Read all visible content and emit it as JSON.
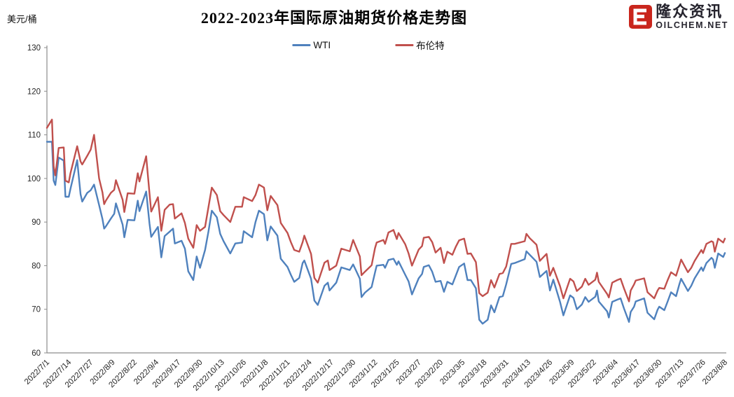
{
  "logo": {
    "icon_glyph": "e",
    "icon_color": "#c9261d",
    "name_zh": "隆众资讯",
    "domain": "OILCHEM.NET",
    "text_color": "#26242e"
  },
  "chart_data": {
    "type": "line",
    "title": "2022-2023年国际原油期货价格走势图",
    "ylabel": "美元/桶",
    "xlabel": "",
    "ylim": [
      60,
      130
    ],
    "grid": false,
    "legend_position": "top-center",
    "y_ticks": [
      60,
      70,
      80,
      90,
      100,
      110,
      120,
      130
    ],
    "x_unit": "day offset from 2022/7/1",
    "x_tick_day_offsets": [
      0,
      13,
      26,
      39,
      52,
      65,
      78,
      91,
      104,
      117,
      130,
      143,
      156,
      169,
      182,
      195,
      208,
      221,
      234,
      247,
      260,
      273,
      286,
      299,
      312,
      325,
      338,
      351,
      364,
      377,
      390,
      403
    ],
    "x_tick_labels": [
      "2022/7/1",
      "2022/7/14",
      "2022/7/27",
      "2022/8/9",
      "2022/8/22",
      "2022/9/4",
      "2022/9/17",
      "2022/9/30",
      "2022/10/13",
      "2022/10/26",
      "2022/11/8",
      "2022/11/21",
      "2022/12/4",
      "2022/12/17",
      "2022/12/30",
      "2023/1/12",
      "2023/1/25",
      "2023/2/7",
      "2023/2/20",
      "2023/3/5",
      "2023/3/18",
      "2023/3/31",
      "2023/4/13",
      "2023/4/26",
      "2023/5/9",
      "2023/5/22",
      "2023/6/4",
      "2023/6/17",
      "2023/6/30",
      "2023/7/13",
      "2023/7/26",
      "2023/8/8"
    ],
    "series": [
      {
        "name": "WTI",
        "color": "#4F81BD"
      },
      {
        "name": "布伦特",
        "color": "#C0504D"
      }
    ],
    "points_format": [
      "day_offset",
      "WTI",
      "布伦特"
    ],
    "points": [
      [
        0,
        108.4,
        111.6
      ],
      [
        3,
        108.4,
        113.5
      ],
      [
        4,
        99.5,
        102.8
      ],
      [
        5,
        98.5,
        100.7
      ],
      [
        7,
        104.8,
        107.0
      ],
      [
        10,
        104.1,
        107.1
      ],
      [
        11,
        95.8,
        99.5
      ],
      [
        13,
        95.8,
        99.1
      ],
      [
        14,
        97.6,
        101.2
      ],
      [
        18,
        104.2,
        107.4
      ],
      [
        20,
        96.4,
        103.9
      ],
      [
        21,
        94.7,
        103.2
      ],
      [
        24,
        96.7,
        105.2
      ],
      [
        26,
        97.3,
        106.6
      ],
      [
        28,
        98.6,
        110.0
      ],
      [
        31,
        93.9,
        100.0
      ],
      [
        33,
        90.7,
        96.8
      ],
      [
        34,
        88.5,
        94.1
      ],
      [
        35,
        89.0,
        94.9
      ],
      [
        38,
        90.8,
        96.7
      ],
      [
        40,
        91.9,
        97.4
      ],
      [
        41,
        94.3,
        99.6
      ],
      [
        45,
        89.4,
        95.1
      ],
      [
        46,
        86.5,
        92.3
      ],
      [
        48,
        90.5,
        96.6
      ],
      [
        52,
        90.4,
        96.5
      ],
      [
        54,
        94.9,
        101.2
      ],
      [
        55,
        92.5,
        99.3
      ],
      [
        59,
        97.0,
        105.1
      ],
      [
        61,
        89.6,
        96.5
      ],
      [
        62,
        86.6,
        92.4
      ],
      [
        66,
        88.9,
        95.7
      ],
      [
        68,
        81.9,
        88.0
      ],
      [
        70,
        86.8,
        92.8
      ],
      [
        73,
        87.8,
        94.0
      ],
      [
        75,
        88.5,
        94.1
      ],
      [
        76,
        85.1,
        90.8
      ],
      [
        80,
        85.7,
        92.0
      ],
      [
        82,
        83.9,
        89.8
      ],
      [
        84,
        78.7,
        86.2
      ],
      [
        87,
        76.7,
        84.1
      ],
      [
        89,
        82.1,
        89.3
      ],
      [
        91,
        79.5,
        88.0
      ],
      [
        94,
        83.6,
        88.9
      ],
      [
        96,
        87.8,
        93.4
      ],
      [
        98,
        92.6,
        97.9
      ],
      [
        101,
        91.1,
        96.2
      ],
      [
        103,
        87.3,
        92.5
      ],
      [
        105,
        85.6,
        91.6
      ],
      [
        109,
        82.8,
        90.0
      ],
      [
        112,
        85.1,
        93.5
      ],
      [
        116,
        85.3,
        93.5
      ],
      [
        117,
        87.9,
        95.7
      ],
      [
        122,
        86.5,
        94.8
      ],
      [
        124,
        90.0,
        96.2
      ],
      [
        126,
        92.6,
        98.6
      ],
      [
        129,
        91.8,
        97.9
      ],
      [
        131,
        85.8,
        92.7
      ],
      [
        133,
        89.0,
        96.0
      ],
      [
        137,
        86.9,
        93.9
      ],
      [
        139,
        81.6,
        89.8
      ],
      [
        143,
        79.7,
        87.5
      ],
      [
        145,
        77.9,
        85.4
      ],
      [
        147,
        76.3,
        83.6
      ],
      [
        150,
        77.2,
        83.2
      ],
      [
        152,
        80.6,
        85.4
      ],
      [
        153,
        81.2,
        86.9
      ],
      [
        157,
        77.0,
        82.7
      ],
      [
        159,
        72.0,
        77.2
      ],
      [
        161,
        71.0,
        76.1
      ],
      [
        165,
        75.4,
        80.7
      ],
      [
        167,
        76.1,
        81.2
      ],
      [
        168,
        74.3,
        79.0
      ],
      [
        172,
        76.1,
        80.0
      ],
      [
        175,
        79.6,
        83.9
      ],
      [
        180,
        79.0,
        83.3
      ],
      [
        182,
        80.3,
        85.9
      ],
      [
        186,
        77.0,
        82.1
      ],
      [
        187,
        72.8,
        77.8
      ],
      [
        189,
        73.8,
        78.6
      ],
      [
        193,
        75.1,
        80.1
      ],
      [
        195,
        78.4,
        84.0
      ],
      [
        196,
        80.0,
        85.3
      ],
      [
        200,
        80.2,
        85.9
      ],
      [
        201,
        79.5,
        85.0
      ],
      [
        203,
        81.3,
        87.6
      ],
      [
        206,
        81.6,
        88.2
      ],
      [
        208,
        80.2,
        86.1
      ],
      [
        209,
        81.0,
        87.5
      ],
      [
        213,
        77.9,
        84.9
      ],
      [
        215,
        76.4,
        82.8
      ],
      [
        217,
        73.4,
        80.0
      ],
      [
        221,
        77.1,
        83.7
      ],
      [
        223,
        78.1,
        84.5
      ],
      [
        224,
        79.7,
        86.4
      ],
      [
        227,
        80.1,
        86.6
      ],
      [
        229,
        78.6,
        85.4
      ],
      [
        231,
        76.3,
        83.0
      ],
      [
        234,
        76.5,
        84.1
      ],
      [
        236,
        74.0,
        80.6
      ],
      [
        238,
        76.3,
        83.2
      ],
      [
        241,
        75.7,
        82.5
      ],
      [
        243,
        77.7,
        84.3
      ],
      [
        245,
        79.7,
        85.8
      ],
      [
        248,
        80.5,
        86.2
      ],
      [
        250,
        76.7,
        82.7
      ],
      [
        252,
        76.7,
        82.8
      ],
      [
        255,
        74.8,
        80.8
      ],
      [
        257,
        67.6,
        73.7
      ],
      [
        259,
        66.7,
        73.0
      ],
      [
        262,
        67.6,
        73.8
      ],
      [
        264,
        70.9,
        76.7
      ],
      [
        266,
        69.3,
        75.0
      ],
      [
        269,
        72.8,
        78.1
      ],
      [
        271,
        73.0,
        78.3
      ],
      [
        273,
        75.7,
        79.8
      ],
      [
        276,
        80.4,
        85.0
      ],
      [
        278,
        80.6,
        85.0
      ],
      [
        284,
        81.5,
        85.6
      ],
      [
        285,
        83.3,
        87.3
      ],
      [
        287,
        82.5,
        86.3
      ],
      [
        291,
        80.9,
        84.8
      ],
      [
        293,
        77.4,
        81.1
      ],
      [
        297,
        78.8,
        82.7
      ],
      [
        299,
        74.3,
        77.7
      ],
      [
        301,
        76.8,
        79.5
      ],
      [
        305,
        71.7,
        75.3
      ],
      [
        307,
        68.6,
        72.5
      ],
      [
        311,
        73.2,
        77.0
      ],
      [
        313,
        72.6,
        76.4
      ],
      [
        315,
        70.0,
        74.2
      ],
      [
        318,
        71.1,
        75.2
      ],
      [
        320,
        72.8,
        77.0
      ],
      [
        322,
        71.7,
        75.6
      ],
      [
        326,
        72.9,
        76.8
      ],
      [
        327,
        74.3,
        78.4
      ],
      [
        328,
        71.8,
        76.3
      ],
      [
        333,
        69.5,
        73.5
      ],
      [
        334,
        68.1,
        72.7
      ],
      [
        336,
        71.7,
        76.1
      ],
      [
        339,
        72.2,
        76.7
      ],
      [
        341,
        72.5,
        77.0
      ],
      [
        343,
        70.2,
        74.8
      ],
      [
        346,
        67.1,
        71.8
      ],
      [
        347,
        69.4,
        74.3
      ],
      [
        349,
        70.6,
        75.7
      ],
      [
        350,
        71.8,
        76.6
      ],
      [
        355,
        72.5,
        77.1
      ],
      [
        357,
        69.2,
        73.9
      ],
      [
        361,
        67.7,
        72.5
      ],
      [
        363,
        69.9,
        74.3
      ],
      [
        364,
        70.6,
        74.9
      ],
      [
        367,
        69.8,
        74.7
      ],
      [
        369,
        71.8,
        76.7
      ],
      [
        371,
        73.9,
        78.5
      ],
      [
        374,
        73.0,
        77.7
      ],
      [
        376,
        75.8,
        80.1
      ],
      [
        377,
        77.0,
        81.4
      ],
      [
        381,
        74.2,
        78.5
      ],
      [
        383,
        75.4,
        79.5
      ],
      [
        385,
        77.1,
        81.1
      ],
      [
        389,
        79.6,
        83.6
      ],
      [
        390,
        78.8,
        82.9
      ],
      [
        392,
        80.6,
        85.0
      ],
      [
        395,
        81.8,
        85.6
      ],
      [
        396,
        81.4,
        85.4
      ],
      [
        397,
        79.5,
        83.2
      ],
      [
        399,
        82.8,
        86.2
      ],
      [
        402,
        82.0,
        85.3
      ],
      [
        403,
        82.9,
        86.2
      ]
    ]
  }
}
